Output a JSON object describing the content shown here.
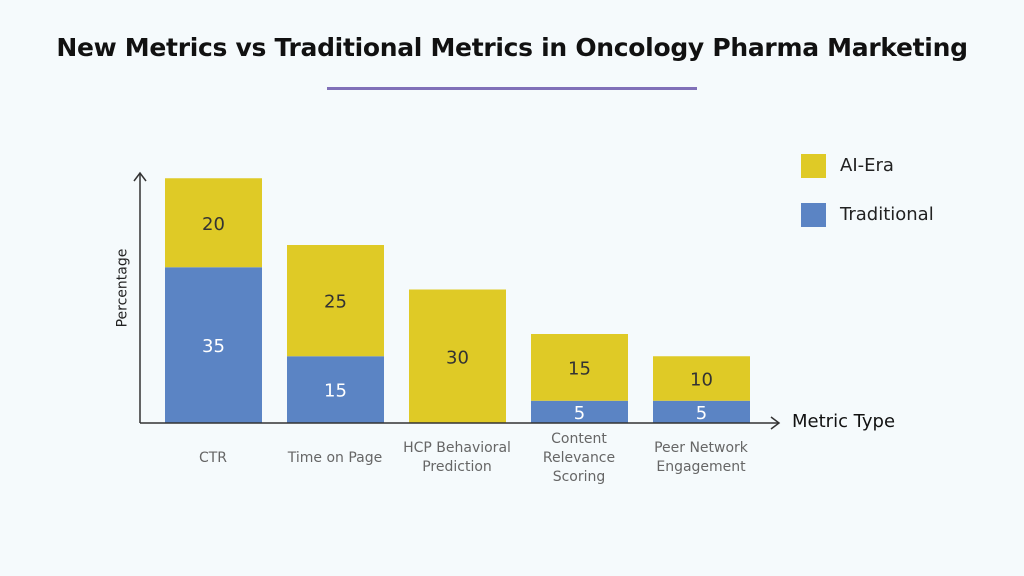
{
  "chart_data": {
    "type": "bar",
    "stacked": true,
    "title": "New Metrics vs Traditional Metrics in Oncology Pharma Marketing",
    "xlabel": "Metric Type",
    "ylabel": "Percentage",
    "categories": [
      "CTR",
      "Time on Page",
      "HCP Behavioral Prediction",
      "Content Relevance Scoring",
      "Peer Network Engagement"
    ],
    "series": [
      {
        "name": "Traditional",
        "values": [
          35,
          15,
          0,
          5,
          5
        ],
        "color": "#5b84c4"
      },
      {
        "name": "AI-Era",
        "values": [
          20,
          25,
          30,
          15,
          10
        ],
        "color": "#dfca26"
      }
    ],
    "legend_placement": "top-right",
    "grid": false
  },
  "colors": {
    "accent_line": "#8070b8",
    "axis": "#333333"
  }
}
